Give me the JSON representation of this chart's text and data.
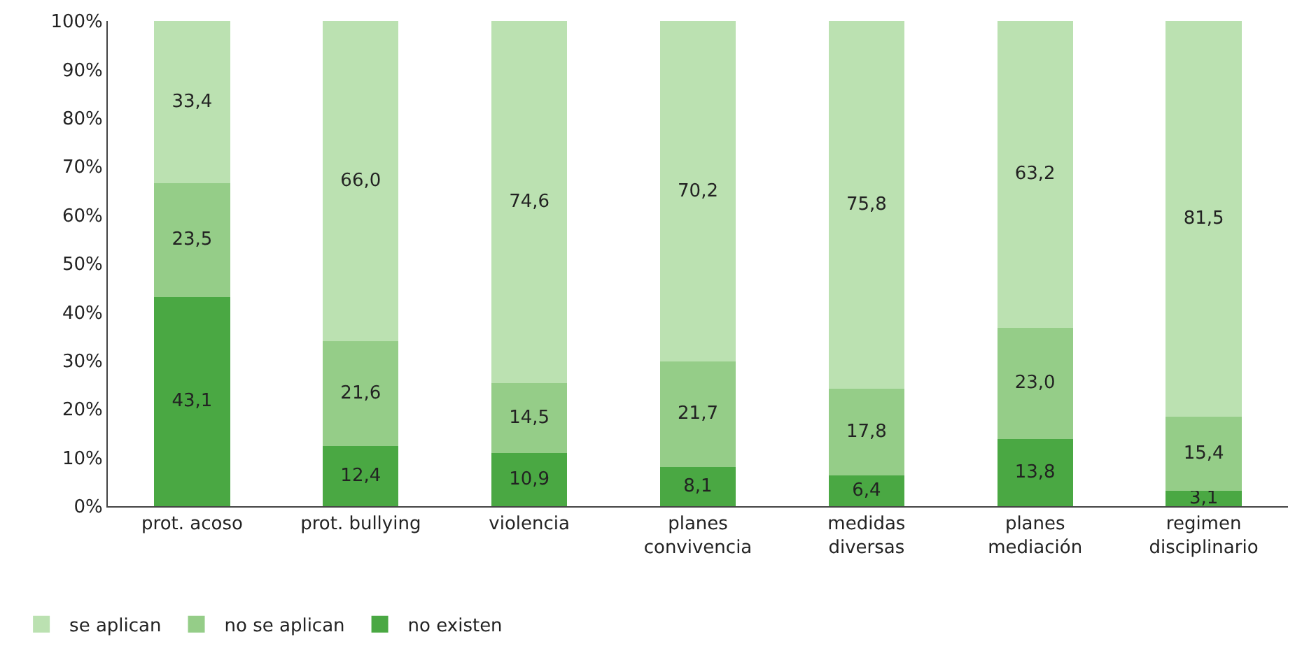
{
  "chart_data": {
    "type": "bar",
    "stacked": true,
    "categories": [
      "prot. acoso",
      "prot. bullying",
      "violencia",
      "planes\nconvivencia",
      "medidas\ndiversas",
      "planes\nmediación",
      "regimen\ndisciplinario"
    ],
    "series": [
      {
        "name": "no existen",
        "color": "#4aa843",
        "values": [
          43.1,
          12.4,
          10.9,
          8.1,
          6.4,
          13.8,
          3.1
        ],
        "value_labels": [
          "43,1",
          "12,4",
          "10,9",
          "8,1",
          "6,4",
          "13,8",
          "3,1"
        ]
      },
      {
        "name": "no se aplican",
        "color": "#95cd88",
        "values": [
          23.5,
          21.6,
          14.5,
          21.7,
          17.8,
          23.0,
          15.4
        ],
        "value_labels": [
          "23,5",
          "21,6",
          "14,5",
          "21,7",
          "17,8",
          "23,0",
          "15,4"
        ]
      },
      {
        "name": "se aplican",
        "color": "#bbe1b1",
        "values": [
          33.4,
          66.0,
          74.6,
          70.2,
          75.8,
          63.2,
          81.5
        ],
        "value_labels": [
          "33,4",
          "66,0",
          "74,6",
          "70,2",
          "75,8",
          "63,2",
          "81,5"
        ]
      }
    ],
    "ylim": [
      0,
      100
    ],
    "yticks": [
      {
        "value": 0,
        "label": "0%"
      },
      {
        "value": 10,
        "label": "10%"
      },
      {
        "value": 20,
        "label": "20%"
      },
      {
        "value": 30,
        "label": "30%"
      },
      {
        "value": 40,
        "label": "40%"
      },
      {
        "value": 50,
        "label": "50%"
      },
      {
        "value": 60,
        "label": "60%"
      },
      {
        "value": 70,
        "label": "70%"
      },
      {
        "value": 80,
        "label": "80%"
      },
      {
        "value": 90,
        "label": "90%"
      },
      {
        "value": 100,
        "label": "100%"
      }
    ],
    "grid": false,
    "legend": "bottom left"
  }
}
